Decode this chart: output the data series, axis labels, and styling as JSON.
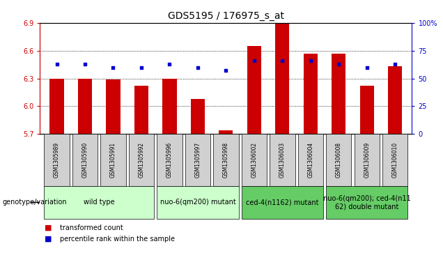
{
  "title": "GDS5195 / 176975_s_at",
  "samples": [
    "GSM1305989",
    "GSM1305990",
    "GSM1305991",
    "GSM1305992",
    "GSM1305996",
    "GSM1305997",
    "GSM1305998",
    "GSM1306002",
    "GSM1306003",
    "GSM1306004",
    "GSM1306008",
    "GSM1306009",
    "GSM1306010"
  ],
  "red_values": [
    6.3,
    6.3,
    6.29,
    6.22,
    6.3,
    6.08,
    5.74,
    6.65,
    6.9,
    6.57,
    6.57,
    6.22,
    6.43
  ],
  "blue_values": [
    63,
    63,
    60,
    60,
    63,
    60,
    57,
    66,
    66,
    66,
    63,
    60,
    63
  ],
  "ylim_left": [
    5.7,
    6.9
  ],
  "ylim_right": [
    0,
    100
  ],
  "yticks_left": [
    5.7,
    6.0,
    6.3,
    6.6,
    6.9
  ],
  "yticks_right": [
    0,
    25,
    50,
    75,
    100
  ],
  "red_color": "#cc0000",
  "blue_color": "#0000cc",
  "baseline": 5.7,
  "groups": [
    {
      "label": "wild type",
      "indices": [
        0,
        1,
        2,
        3
      ],
      "color": "#ccffcc"
    },
    {
      "label": "nuo-6(qm200) mutant",
      "indices": [
        4,
        5,
        6
      ],
      "color": "#ccffcc"
    },
    {
      "label": "ced-4(n1162) mutant",
      "indices": [
        7,
        8,
        9
      ],
      "color": "#66cc66"
    },
    {
      "label": "nuo-6(qm200); ced-4(n11\n62) double mutant",
      "indices": [
        10,
        11,
        12
      ],
      "color": "#66cc66"
    }
  ],
  "legend_label_red": "transformed count",
  "legend_label_blue": "percentile rank within the sample",
  "genotype_label": "genotype/variation",
  "title_fontsize": 10,
  "tick_fontsize": 7,
  "group_fontsize": 7,
  "sample_fontsize": 5.5,
  "bar_width": 0.5
}
